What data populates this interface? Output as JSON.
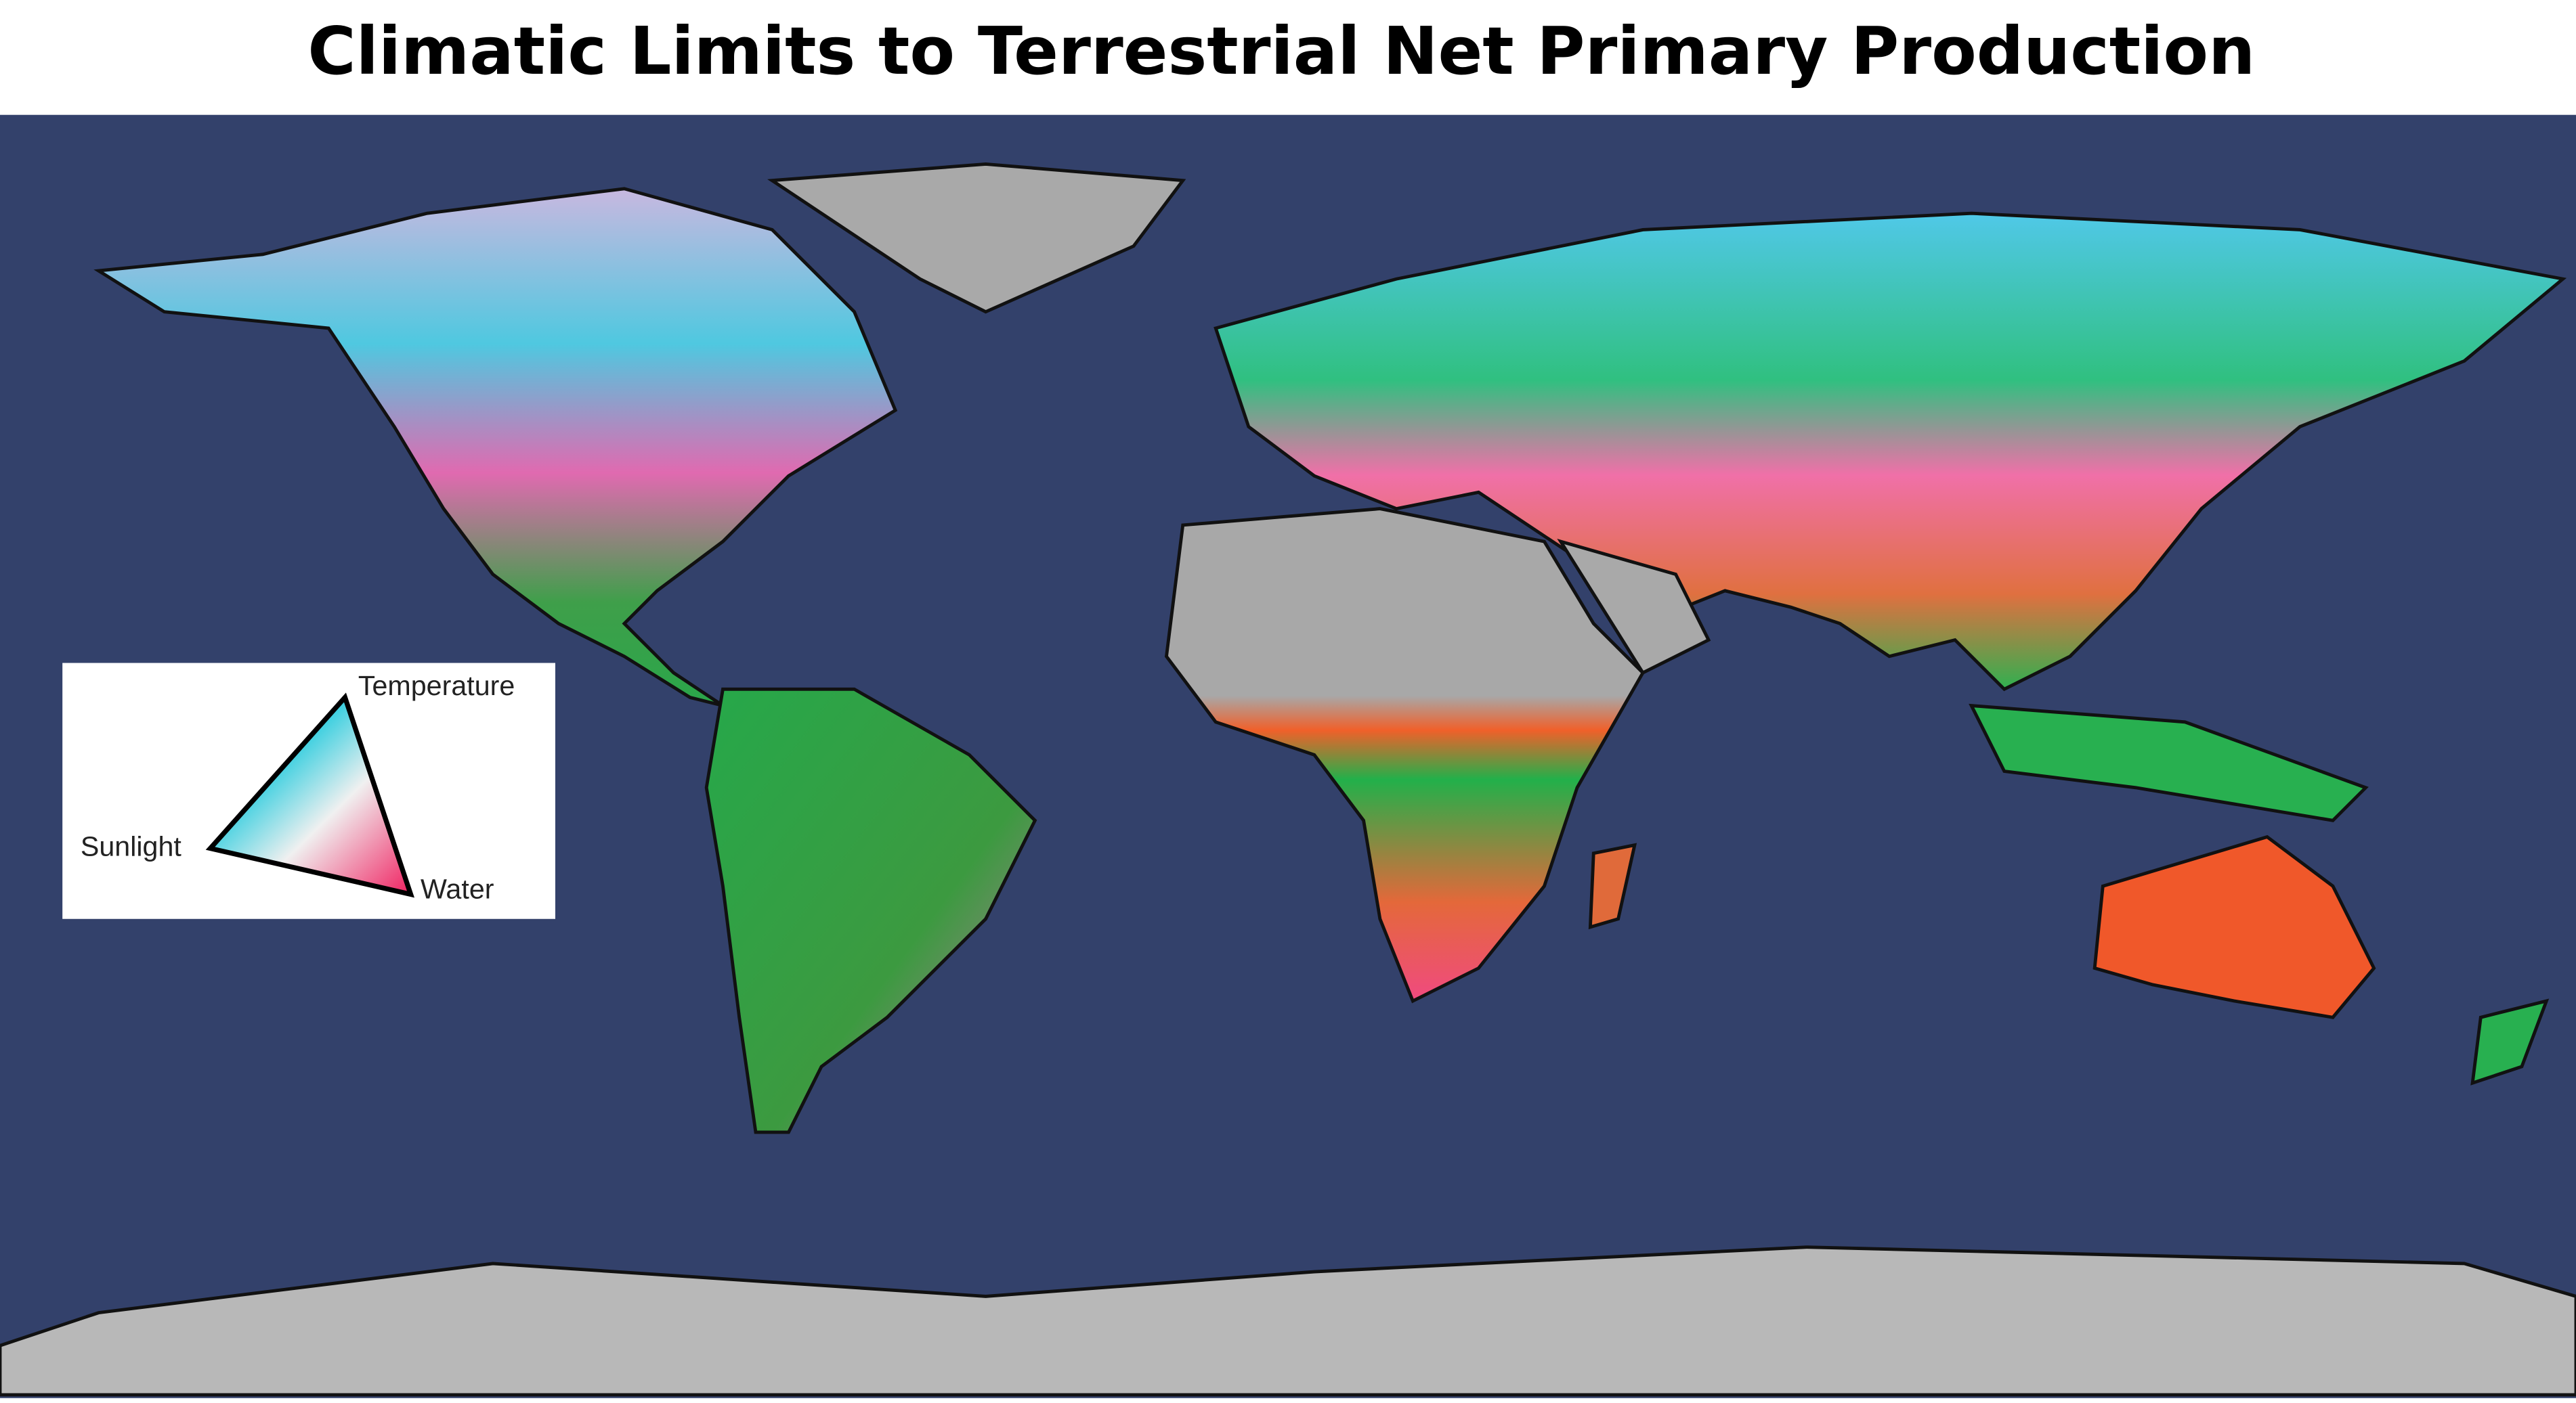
{
  "title": "Climatic Limits to Terrestrial Net Primary Production",
  "legend": {
    "top": "Temperature",
    "left": "Sunlight",
    "right": "Water"
  }
}
